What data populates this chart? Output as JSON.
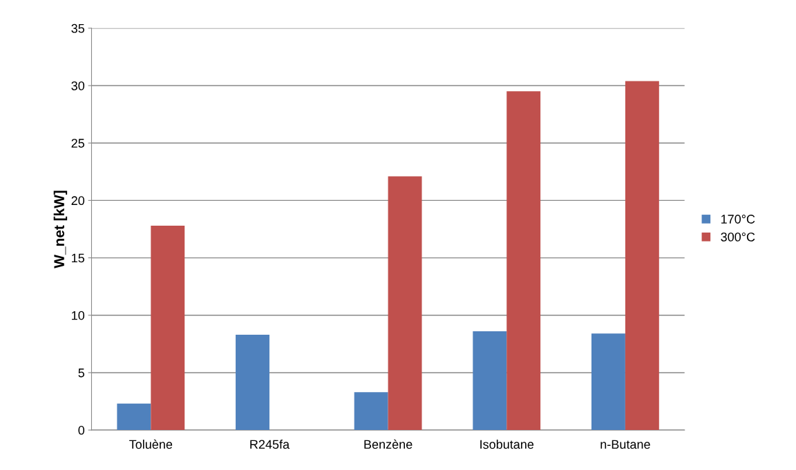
{
  "chart_data": {
    "type": "bar",
    "ylabel": "W_net [kW]",
    "categories": [
      "Toluène",
      "R245fa",
      "Benzène",
      "Isobutane",
      "n-Butane"
    ],
    "series": [
      {
        "name": "170°C",
        "color": "#4f81bd",
        "values": [
          2.3,
          8.3,
          3.3,
          8.6,
          8.4
        ]
      },
      {
        "name": "300°C",
        "color": "#c0504d",
        "values": [
          17.8,
          null,
          22.1,
          29.5,
          30.4
        ]
      }
    ],
    "ylim": [
      0,
      35
    ],
    "yticks": [
      0,
      5,
      10,
      15,
      20,
      25,
      30,
      35
    ],
    "grid": "y",
    "legend": "right"
  }
}
